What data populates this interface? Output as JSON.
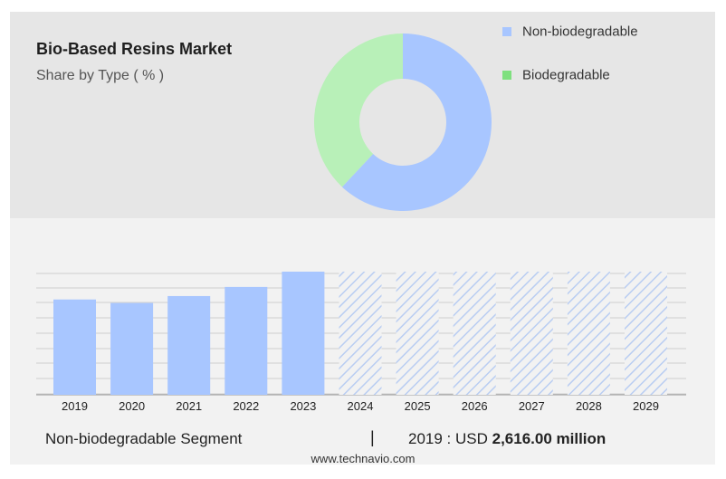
{
  "chart_data": [
    {
      "type": "pie",
      "title": "Bio-Based Resins Market",
      "subtitle": "Share by Type ( % )",
      "categories": [
        "Non-biodegradable",
        "Biodegradable"
      ],
      "values": [
        62,
        38
      ],
      "colors": [
        "#a8c6ff",
        "#b8f0b8"
      ],
      "donut": true
    },
    {
      "type": "bar",
      "categories": [
        "2019",
        "2020",
        "2021",
        "2022",
        "2023",
        "2024",
        "2025",
        "2026",
        "2027",
        "2028",
        "2029"
      ],
      "values": [
        2616,
        2520,
        2710,
        2960,
        3380,
        null,
        null,
        null,
        null,
        null,
        null
      ],
      "forecast_categories": [
        "2024",
        "2025",
        "2026",
        "2027",
        "2028",
        "2029"
      ],
      "color": "#a8c6ff",
      "forecast_style": "hatched",
      "ylim": [
        0,
        3380
      ],
      "grid": true
    }
  ],
  "footer": {
    "segment_label": "Non-biodegradable Segment",
    "separator": "|",
    "value_prefix": "2019 : USD",
    "value_text": "2,616.00 million"
  },
  "source": "www.technavio.com"
}
